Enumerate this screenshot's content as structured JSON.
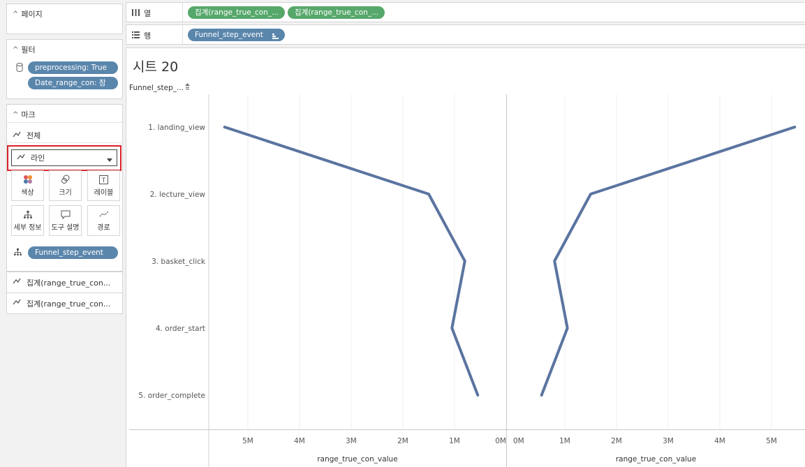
{
  "left_panel": {
    "pages": {
      "title": "페이지"
    },
    "filters": {
      "title": "필터",
      "items": [
        "preprocessing: True",
        "Date_range_con: 참"
      ]
    },
    "marks": {
      "title": "마크",
      "all_label": "전체",
      "mark_type": "라인",
      "buttons": {
        "color": "색상",
        "size": "크기",
        "label": "레이블",
        "detail": "세부 정보",
        "tooltip": "도구 설명",
        "path": "경로"
      },
      "detail_pill": "Funnel_step_event",
      "measure_rows": [
        "집계(range_true_con...",
        "집계(range_true_con..."
      ]
    }
  },
  "shelves": {
    "columns": {
      "label": "열",
      "pills": [
        "집계(range_true_con_...",
        "집계(range_true_con_..."
      ]
    },
    "rows": {
      "label": "행",
      "pills": [
        "Funnel_step_event"
      ]
    }
  },
  "view": {
    "sheet_title": "시트 20",
    "row_header": "Funnel_step_..."
  },
  "chart_data": [
    {
      "type": "line",
      "categories": [
        "1. landing_view",
        "2. lecture_view",
        "3. basket_click",
        "4. order_start",
        "5. order_complete"
      ],
      "values": [
        5.45,
        1.5,
        0.8,
        1.05,
        0.55
      ],
      "x_axis_reversed": true,
      "xlabel": "range_true_con_value",
      "xticks": [
        "5M",
        "4M",
        "3M",
        "2M",
        "1M",
        "0M"
      ],
      "xlim": [
        0,
        5.8
      ],
      "unit": "M",
      "color": "#5b74a0"
    },
    {
      "type": "line",
      "categories": [
        "1. landing_view",
        "2. lecture_view",
        "3. basket_click",
        "4. order_start",
        "5. order_complete"
      ],
      "values": [
        5.45,
        1.5,
        0.8,
        1.05,
        0.55
      ],
      "x_axis_reversed": false,
      "xlabel": "range_true_con_value",
      "xticks": [
        "0M",
        "1M",
        "2M",
        "3M",
        "4M",
        "5M"
      ],
      "xlim": [
        0,
        5.8
      ],
      "unit": "M",
      "color": "#5b74a0"
    }
  ]
}
